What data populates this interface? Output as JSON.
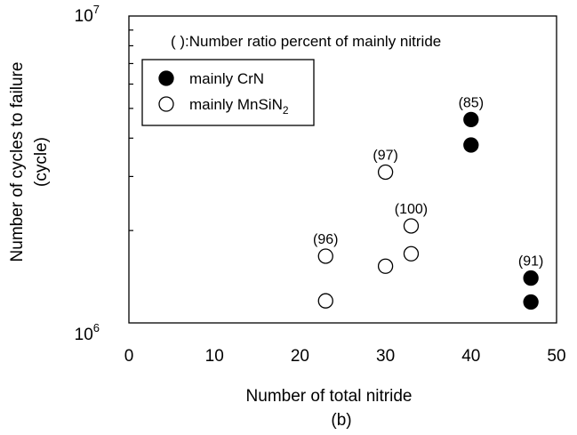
{
  "chart_data": {
    "type": "scatter",
    "title": "",
    "xlabel": "Number of total nitride",
    "ylabel_line1": "Number of cycles to failure",
    "ylabel_line2": "(cycle)",
    "panel_label": "(b)",
    "note": "( ):Number ratio percent of  mainly nitride",
    "xlim": [
      0,
      50
    ],
    "ylim": [
      1000000,
      10000000
    ],
    "y_scale": "log",
    "xticks": [
      0,
      10,
      20,
      30,
      40,
      50
    ],
    "ytick_labels": [
      {
        "base": "10",
        "exp": "6"
      },
      {
        "base": "10",
        "exp": "7"
      }
    ],
    "grid": false,
    "legend_placement": "top-left",
    "series": [
      {
        "name": "mainly CrN",
        "name_parts": {
          "main": "mainly CrN",
          "sub": ""
        },
        "marker": "filled-circle",
        "color": "#000000",
        "points": [
          {
            "x": 40,
            "y": 4600000
          },
          {
            "x": 40,
            "y": 3800000
          },
          {
            "x": 47,
            "y": 1400000
          },
          {
            "x": 47,
            "y": 1170000
          }
        ]
      },
      {
        "name": "mainly MnSiN2",
        "name_parts": {
          "main": "mainly MnSiN",
          "sub": "2"
        },
        "marker": "open-circle",
        "color": "#000000",
        "points": [
          {
            "x": 23,
            "y": 1650000
          },
          {
            "x": 23,
            "y": 1180000
          },
          {
            "x": 30,
            "y": 3100000
          },
          {
            "x": 30,
            "y": 1530000
          },
          {
            "x": 33,
            "y": 2070000
          },
          {
            "x": 33,
            "y": 1680000
          }
        ]
      }
    ],
    "annotations": [
      {
        "text": "(96)",
        "x": 23,
        "y": 1650000
      },
      {
        "text": "(97)",
        "x": 30,
        "y": 3100000
      },
      {
        "text": "(100)",
        "x": 33,
        "y": 2070000
      },
      {
        "text": "(85)",
        "x": 40,
        "y": 4600000
      },
      {
        "text": "(91)",
        "x": 47,
        "y": 1400000
      }
    ]
  }
}
